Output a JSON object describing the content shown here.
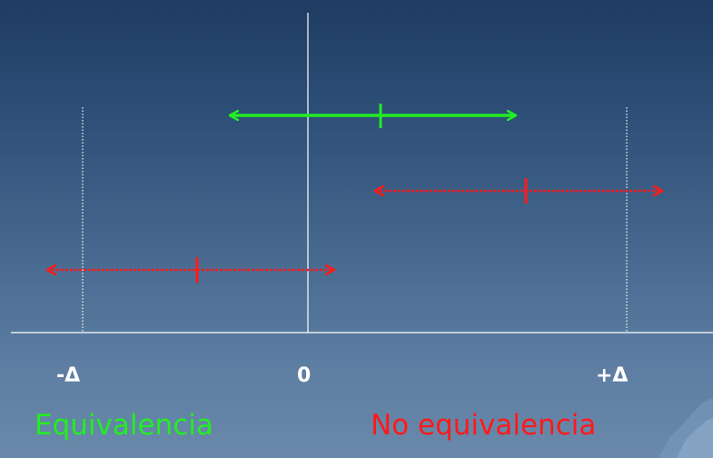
{
  "labels": {
    "minus_delta": "-Δ",
    "zero": "0",
    "plus_delta": "+Δ"
  },
  "captions": {
    "equivalence": "Equivalencia",
    "no_equivalence": "No equivalencia"
  },
  "colors": {
    "equivalence": "#22ee22",
    "no_equivalence": "#ff1a1a",
    "axis": "#ffffff"
  }
}
